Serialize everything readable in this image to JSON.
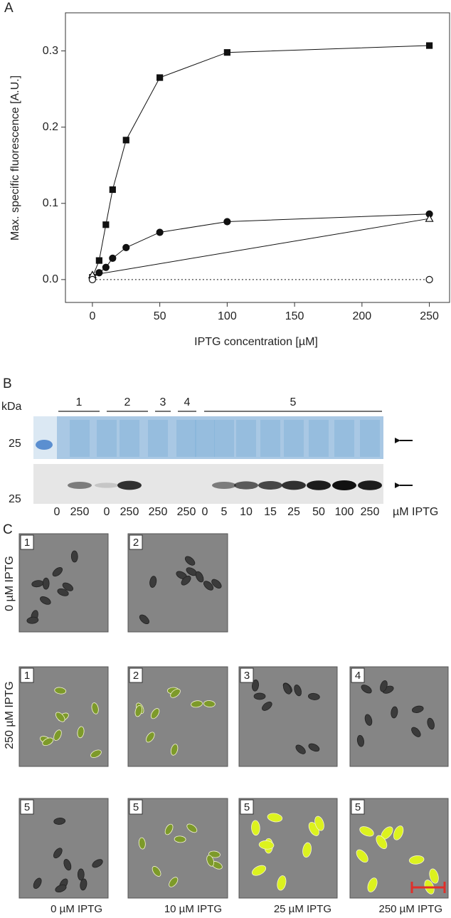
{
  "chart_data": {
    "type": "line",
    "label": "A",
    "x_label": "IPTG concentration [µM]",
    "y_label": "Max. specific fluorescence [A.U.]",
    "xlim": [
      -20,
      265
    ],
    "ylim": [
      -0.03,
      0.35
    ],
    "xticks": [
      0,
      50,
      100,
      150,
      200,
      250
    ],
    "yticks": [
      {
        "value": 0,
        "label": "0.0"
      },
      {
        "value": 0.1,
        "label": "0.1"
      },
      {
        "value": 0.2,
        "label": "0.2"
      },
      {
        "value": 0.3,
        "label": "0.3"
      }
    ],
    "series": [
      {
        "color": "#111111",
        "marker": "square",
        "filled": true,
        "dash": false,
        "x": [
          0,
          5,
          10,
          15,
          25,
          50,
          100,
          250
        ],
        "values": [
          0.003,
          0.025,
          0.072,
          0.118,
          0.183,
          0.265,
          0.298,
          0.307
        ]
      },
      {
        "color": "#111111",
        "marker": "circle",
        "filled": true,
        "dash": false,
        "x": [
          0,
          5,
          10,
          15,
          25,
          50,
          100,
          250
        ],
        "values": [
          0.001,
          0.009,
          0.016,
          0.028,
          0.042,
          0.062,
          0.076,
          0.086
        ]
      },
      {
        "color": "#111111",
        "marker": "triangle",
        "filled": false,
        "dash": false,
        "x": [
          0,
          250
        ],
        "values": [
          0.006,
          0.08
        ]
      },
      {
        "color": "#111111",
        "marker": "circle",
        "filled": false,
        "dash": true,
        "x": [
          0,
          250
        ],
        "values": [
          0,
          0
        ]
      }
    ]
  },
  "panel_b": {
    "label": "B",
    "unit": "kDa",
    "groups": [
      "1",
      "2",
      "3",
      "4",
      "5"
    ],
    "markers": [
      "25",
      "25"
    ],
    "lanes": [
      "0",
      "250",
      "0",
      "250",
      "250",
      "250",
      "0",
      "5",
      "10",
      "15",
      "25",
      "50",
      "100",
      "250"
    ],
    "lanes_unit": "µM IPTG"
  },
  "panel_c": {
    "label": "C",
    "rows": [
      {
        "row_label": "0 µM IPTG",
        "tiles": [
          "1",
          "2"
        ]
      },
      {
        "row_label": "250 µM IPTG",
        "tiles": [
          "1",
          "2",
          "3",
          "4"
        ]
      },
      {
        "tiles": [
          "5",
          "5",
          "5",
          "5"
        ],
        "captions": [
          "0 µM IPTG",
          "10 µM IPTG",
          "25 µM IPTG",
          "250 µM IPTG"
        ]
      }
    ]
  }
}
